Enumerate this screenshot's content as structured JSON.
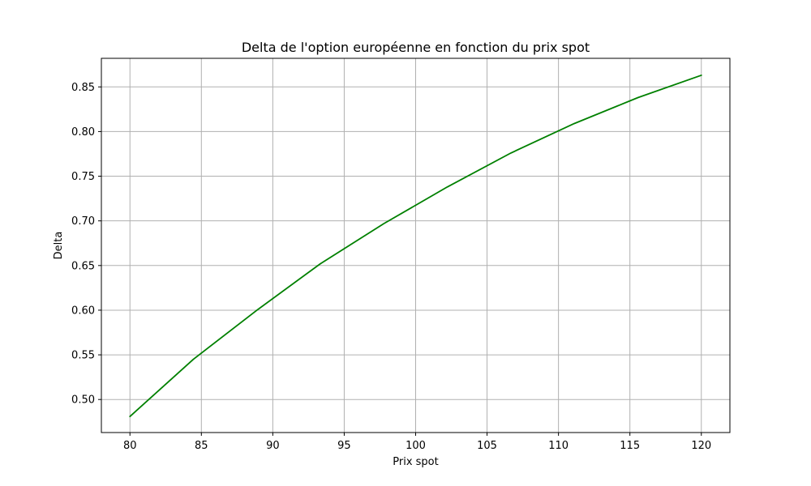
{
  "chart_data": {
    "type": "line",
    "title": "Delta de l'option européenne en fonction du prix spot",
    "xlabel": "Prix spot",
    "ylabel": "Delta",
    "xlim": [
      78,
      122
    ],
    "ylim": [
      0.463,
      0.882
    ],
    "xticks": [
      80,
      85,
      90,
      95,
      100,
      105,
      110,
      115,
      120
    ],
    "yticks": [
      0.5,
      0.55,
      0.6,
      0.65,
      0.7,
      0.75,
      0.8,
      0.85
    ],
    "grid": true,
    "series": [
      {
        "color": "#008000",
        "x": [
          80,
          84.44,
          88.89,
          93.33,
          97.78,
          102.22,
          106.67,
          111.11,
          115.56,
          120
        ],
        "y": [
          0.481,
          0.545,
          0.6,
          0.652,
          0.697,
          0.738,
          0.776,
          0.809,
          0.838,
          0.863
        ]
      }
    ]
  },
  "colors": {
    "line": "#008000",
    "grid": "#b0b0b0",
    "axes": "#000000"
  }
}
